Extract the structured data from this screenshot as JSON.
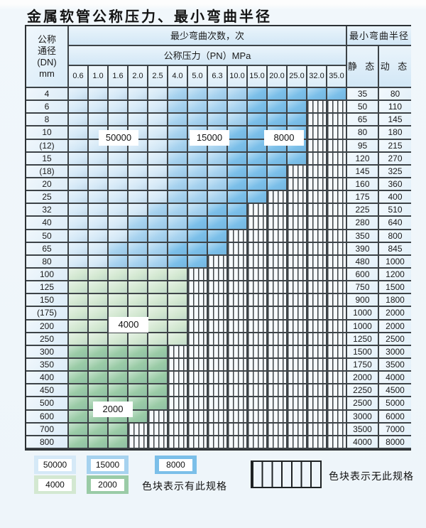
{
  "title": "金属软管公称压力、最小弯曲半径",
  "table": {
    "dn_header_lines": [
      "公称",
      "通径",
      "(DN)",
      "mm"
    ],
    "bend_times_header": "最少弯曲次数，次",
    "pressure_header": "公称压力（PN）MPa",
    "pressures": [
      "0.6",
      "1.0",
      "1.6",
      "2.0",
      "2.5",
      "4.0",
      "5.0",
      "6.3",
      "10.0",
      "15.0",
      "20.0",
      "25.0",
      "32.0",
      "35.0"
    ],
    "radius_header": "最小弯曲半径",
    "static_header": "静 态",
    "dynamic_header": "动 态",
    "cell_code_legend": {
      "L": "50000次",
      "M": "15000次",
      "D": "8000次",
      "G": "4000次",
      "T": "2000次",
      "H": "无此规格"
    },
    "rows": [
      {
        "dn": "4",
        "cells": "LLLLLMMMMDDDDD",
        "static": "35",
        "dynamic": "80"
      },
      {
        "dn": "6",
        "cells": "LLLLLMMMMDDDHH",
        "static": "50",
        "dynamic": "110"
      },
      {
        "dn": "8",
        "cells": "LLLLLMMMMDDDHH",
        "static": "65",
        "dynamic": "145"
      },
      {
        "dn": "10",
        "cells": "LLLLLMMMDDDDHH",
        "static": "80",
        "dynamic": "180"
      },
      {
        "dn": "(12)",
        "cells": "LLLLLMMMDDDDHH",
        "static": "95",
        "dynamic": "215"
      },
      {
        "dn": "15",
        "cells": "LLLLLMMMDDDDHH",
        "static": "120",
        "dynamic": "270"
      },
      {
        "dn": "(18)",
        "cells": "LLLLLMMMDDDHHH",
        "static": "145",
        "dynamic": "325"
      },
      {
        "dn": "20",
        "cells": "LLLLLMMMDDDHHH",
        "static": "160",
        "dynamic": "360"
      },
      {
        "dn": "25",
        "cells": "LLLLLMMMDDHHHH",
        "static": "175",
        "dynamic": "400"
      },
      {
        "dn": "32",
        "cells": "LLLLMMMDDHHHHH",
        "static": "225",
        "dynamic": "510"
      },
      {
        "dn": "40",
        "cells": "LLLMMMDDDHHHHH",
        "static": "280",
        "dynamic": "640"
      },
      {
        "dn": "50",
        "cells": "LLLMMMDDHHHHHH",
        "static": "350",
        "dynamic": "800"
      },
      {
        "dn": "65",
        "cells": "LLMMMDDDHHHHHH",
        "static": "390",
        "dynamic": "845"
      },
      {
        "dn": "80",
        "cells": "LLMMMDDHHHHHHH",
        "static": "480",
        "dynamic": "1000"
      },
      {
        "dn": "100",
        "cells": "GGGGGGHHHHHHHH",
        "static": "600",
        "dynamic": "1200"
      },
      {
        "dn": "125",
        "cells": "GGGGGGHHHHHHHH",
        "static": "750",
        "dynamic": "1500"
      },
      {
        "dn": "150",
        "cells": "GGGGGGHHHHHHHH",
        "static": "900",
        "dynamic": "1800"
      },
      {
        "dn": "(175)",
        "cells": "GGGGGGHHHHHHHH",
        "static": "1000",
        "dynamic": "2000"
      },
      {
        "dn": "200",
        "cells": "GGGGGGHHHHHHHH",
        "static": "1000",
        "dynamic": "2000"
      },
      {
        "dn": "250",
        "cells": "GGGGGGHHHHHHHH",
        "static": "1250",
        "dynamic": "2500"
      },
      {
        "dn": "300",
        "cells": "TTTTTHHHHHHHHH",
        "static": "1500",
        "dynamic": "3000"
      },
      {
        "dn": "350",
        "cells": "TTTTTHHHHHHHHH",
        "static": "1750",
        "dynamic": "3500"
      },
      {
        "dn": "400",
        "cells": "TTTTTHHHHHHHHH",
        "static": "2000",
        "dynamic": "4000"
      },
      {
        "dn": "450",
        "cells": "TTTTTHHHHHHHHH",
        "static": "2250",
        "dynamic": "4500"
      },
      {
        "dn": "500",
        "cells": "TTTTTHHHHHHHHH",
        "static": "2500",
        "dynamic": "5000"
      },
      {
        "dn": "600",
        "cells": "TTTTHHHHHHHHHH",
        "static": "3000",
        "dynamic": "6000"
      },
      {
        "dn": "700",
        "cells": "TTTHHHHHHHHHHH",
        "static": "3500",
        "dynamic": "7000"
      },
      {
        "dn": "800",
        "cells": "TTTHHHHHHHHHHH",
        "static": "4000",
        "dynamic": "8000"
      }
    ],
    "zone_labels": [
      {
        "text": "50000"
      },
      {
        "text": "15000"
      },
      {
        "text": "8000"
      },
      {
        "text": "4000"
      },
      {
        "text": "2000"
      }
    ]
  },
  "legend": {
    "items": [
      {
        "value": "50000",
        "color": "#d5e9f7"
      },
      {
        "value": "15000",
        "color": "#a6d2ef"
      },
      {
        "value": "8000",
        "color": "#7bbfe9"
      },
      {
        "value": "4000",
        "color": "#d3e8d1"
      },
      {
        "value": "2000",
        "color": "#9acba6"
      }
    ],
    "has_spec_text": "色块表示有此规格",
    "no_spec_text": "色块表示无此规格"
  },
  "colors": {
    "zone_L": "#d5e9f7",
    "zone_M": "#a6d2ef",
    "zone_D": "#7bbfe9",
    "zone_G": "#d3e8d1",
    "zone_T": "#9acba6",
    "grid_line": "#3d4347"
  }
}
